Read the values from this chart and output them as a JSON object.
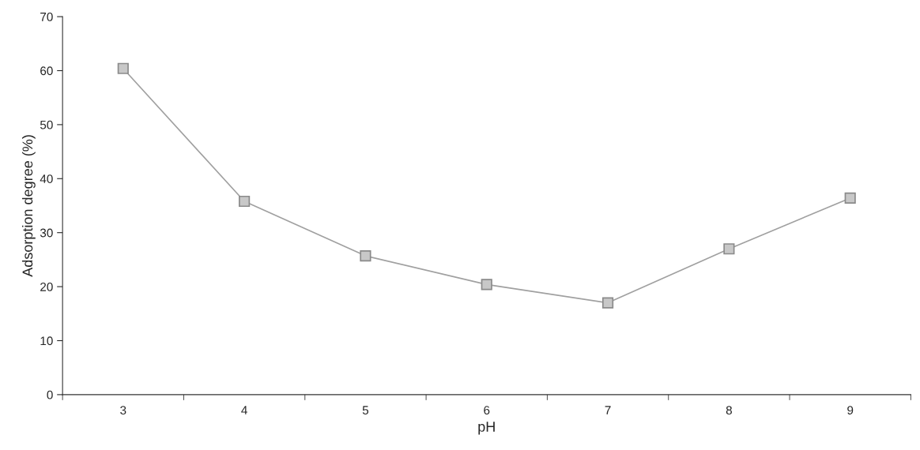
{
  "chart_data": {
    "type": "line",
    "xlabel": "pH",
    "ylabel": "Adsorption degree (%)",
    "categories": [
      "3",
      "4",
      "5",
      "6",
      "7",
      "8",
      "9"
    ],
    "series": [
      {
        "color": "#a0a0a0",
        "values": [
          60.4,
          35.8,
          25.7,
          20.4,
          17.0,
          27.0,
          36.4
        ]
      }
    ],
    "ylim": [
      0,
      70
    ],
    "yticks": [
      0,
      10,
      20,
      30,
      40,
      50,
      60,
      70
    ],
    "marker": "square",
    "line_style": "solid",
    "grid": false,
    "legend": false
  }
}
